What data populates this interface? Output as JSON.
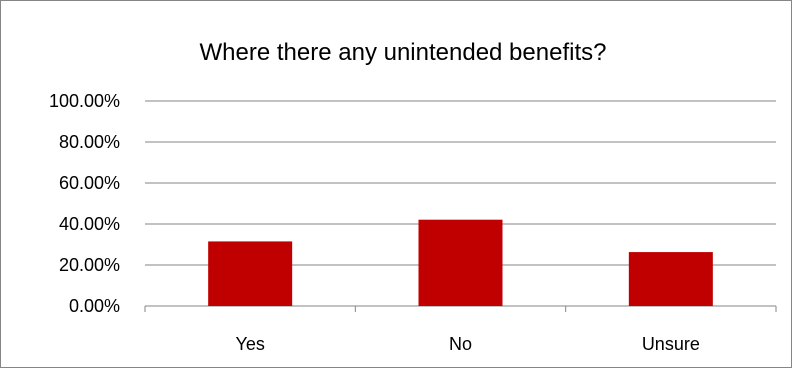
{
  "chart_data": {
    "type": "bar",
    "title": "Where there any unintended benefits?",
    "categories": [
      "Yes",
      "No",
      "Unsure"
    ],
    "values": [
      31.5,
      42.1,
      26.3
    ],
    "yticks": [
      "0.00%",
      "20.00%",
      "40.00%",
      "60.00%",
      "80.00%",
      "100.00%"
    ],
    "ylim": [
      0,
      100
    ],
    "grid": true,
    "legend": "none",
    "bar_color": "#C00000"
  }
}
